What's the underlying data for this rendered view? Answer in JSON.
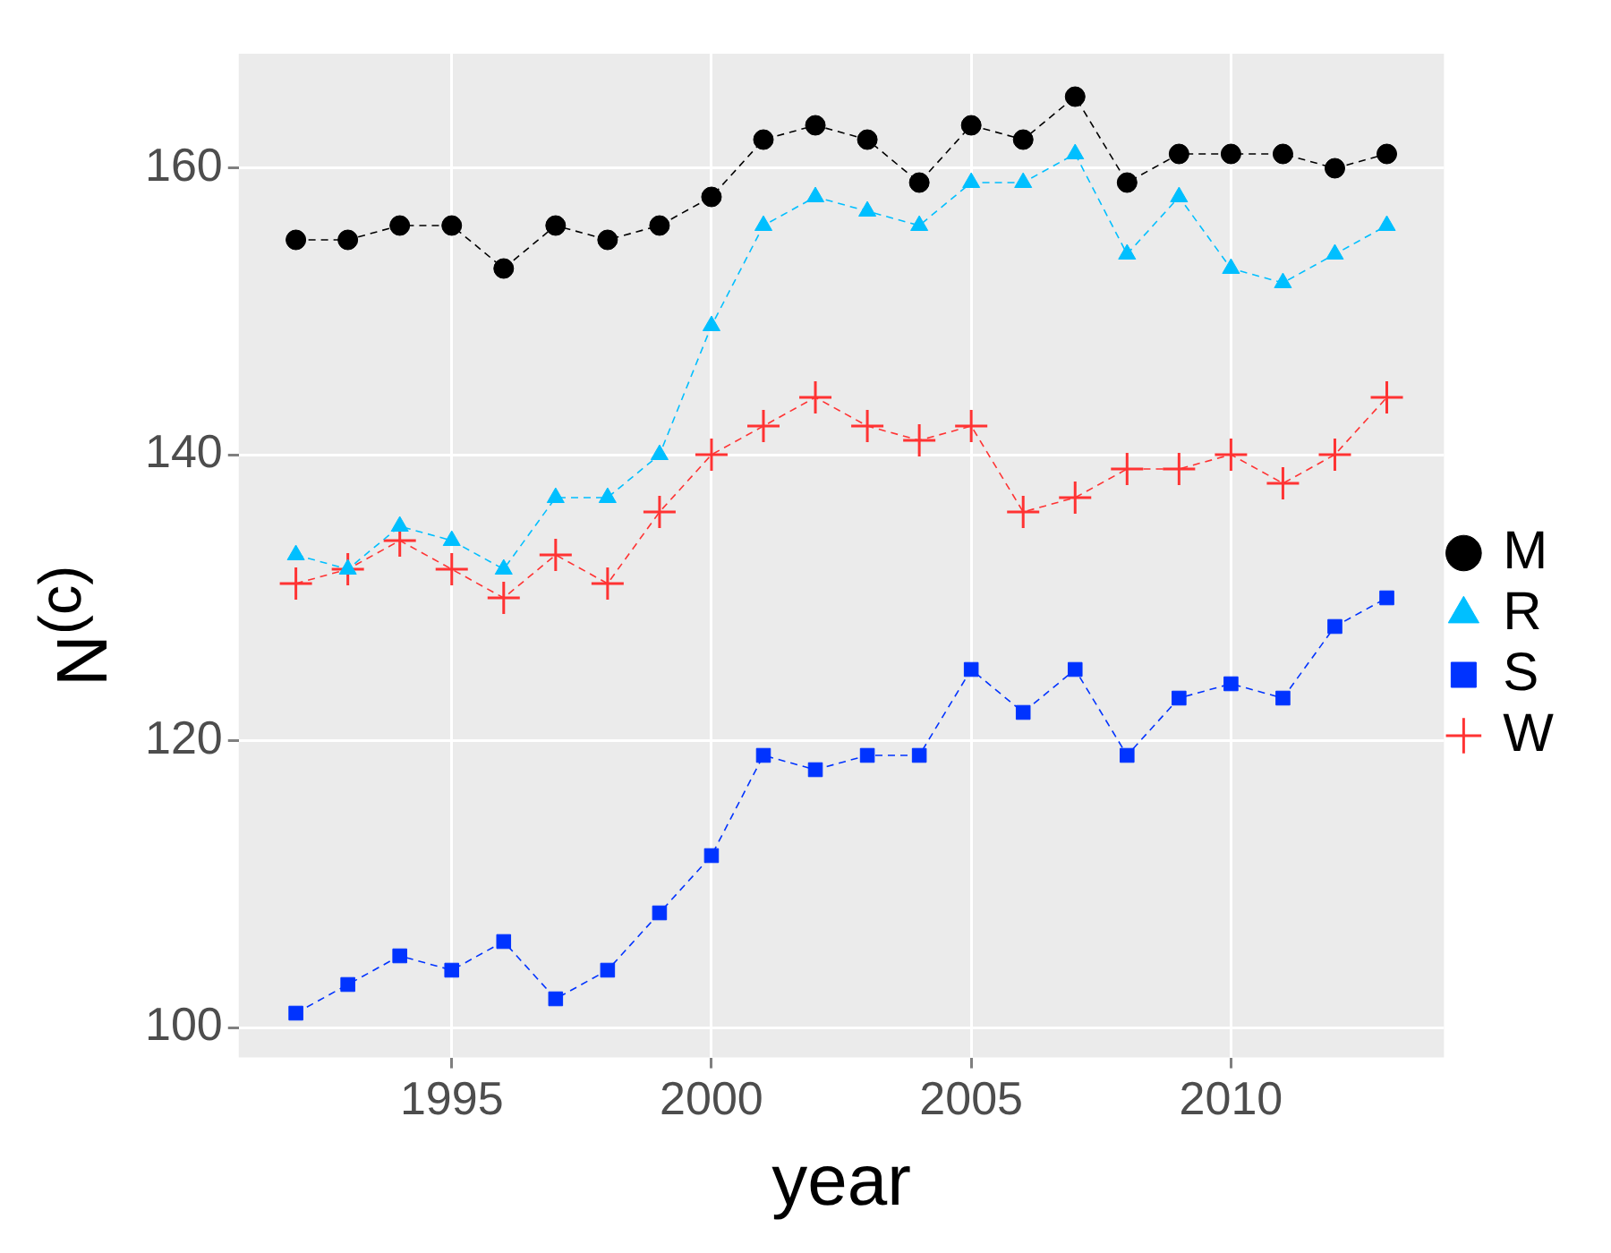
{
  "chart_data": {
    "type": "line",
    "xlabel": "year",
    "ylabel": "N$^{(c)}$",
    "x": [
      1992,
      1993,
      1994,
      1995,
      1996,
      1997,
      1998,
      1999,
      2000,
      2001,
      2002,
      2003,
      2004,
      2005,
      2006,
      2007,
      2008,
      2009,
      2010,
      2011,
      2012,
      2013
    ],
    "series": [
      {
        "name": "M",
        "color": "#000000",
        "marker": "circle",
        "values": [
          155,
          155,
          156,
          156,
          153,
          156,
          155,
          156,
          158,
          162,
          163,
          162,
          159,
          163,
          162,
          165,
          159,
          161,
          161,
          161,
          160,
          161
        ]
      },
      {
        "name": "R",
        "color": "#00bfff",
        "marker": "triangle",
        "values": [
          133,
          132,
          135,
          134,
          132,
          137,
          137,
          140,
          149,
          156,
          158,
          157,
          156,
          159,
          159,
          161,
          154,
          158,
          153,
          152,
          154,
          156
        ]
      },
      {
        "name": "S",
        "color": "#0033ff",
        "marker": "square",
        "values": [
          101,
          103,
          105,
          104,
          106,
          102,
          104,
          108,
          112,
          119,
          118,
          119,
          119,
          125,
          122,
          125,
          119,
          123,
          124,
          123,
          128,
          130
        ]
      },
      {
        "name": "W",
        "color": "#ff3333",
        "marker": "cross",
        "values": [
          131,
          132,
          134,
          132,
          130,
          133,
          131,
          136,
          140,
          142,
          144,
          142,
          141,
          142,
          136,
          137,
          139,
          139,
          140,
          138,
          140,
          144
        ]
      }
    ],
    "xlim": [
      1990.9,
      2014.1
    ],
    "xticks": [
      1995,
      2000,
      2005,
      2010
    ],
    "ylim": [
      97.9,
      168
    ],
    "yticks": [
      100,
      120,
      140,
      160
    ],
    "grid": true,
    "legend": "right",
    "line_style": "dashed"
  }
}
